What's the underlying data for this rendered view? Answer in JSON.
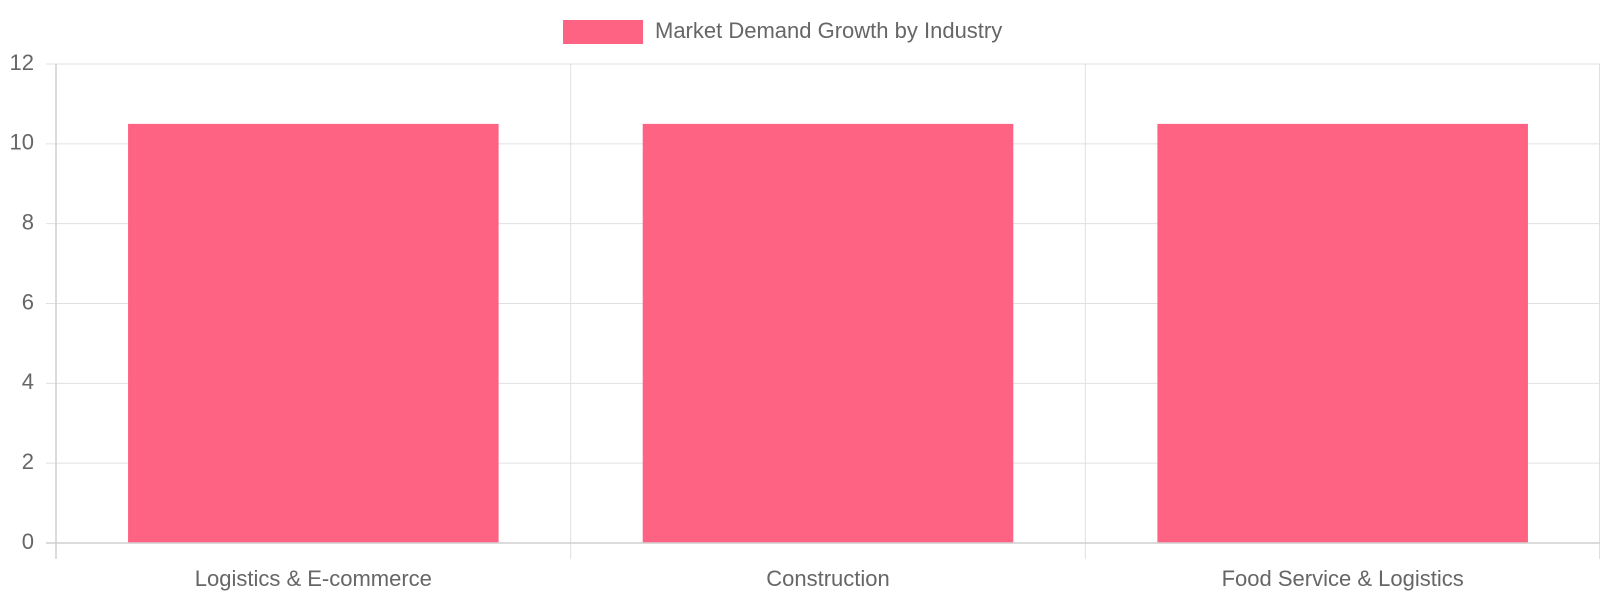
{
  "chart_data": {
    "type": "bar",
    "title": "",
    "xlabel": "",
    "ylabel": "",
    "categories": [
      "Logistics & E-commerce",
      "Construction",
      "Food Service & Logistics"
    ],
    "series": [
      {
        "name": "Market Demand Growth by Industry",
        "values": [
          10.5,
          10.5,
          10.5
        ],
        "color": "#ff6384"
      }
    ],
    "ylim": [
      0,
      12
    ],
    "yticks": [
      "0",
      "2",
      "4",
      "6",
      "8",
      "10",
      "12"
    ],
    "grid": true,
    "legend_position": "top-center"
  }
}
